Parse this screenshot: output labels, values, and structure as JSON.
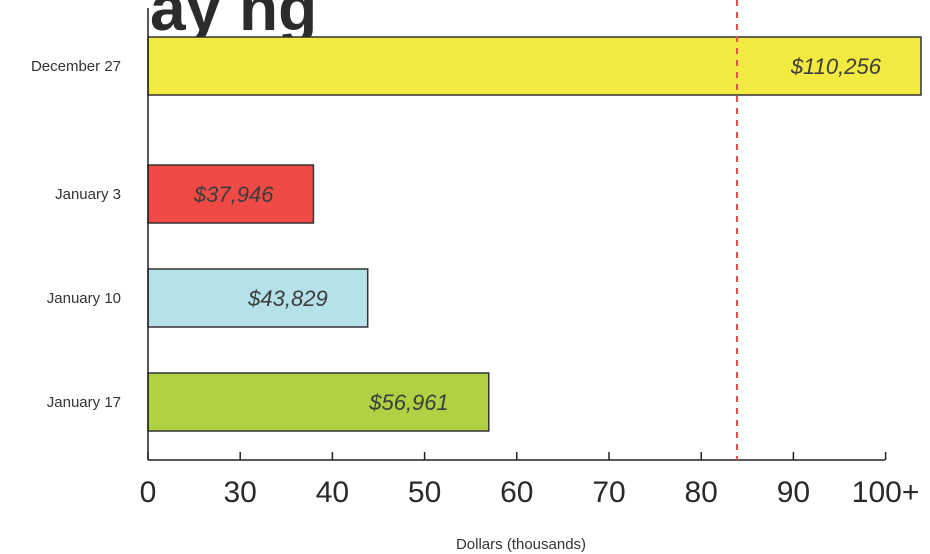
{
  "chart_data": {
    "type": "bar",
    "orientation": "horizontal",
    "categories": [
      "December 27",
      "January 3",
      "January 10",
      "January 17"
    ],
    "values": [
      110256,
      37946,
      43829,
      56961
    ],
    "value_labels": [
      "$110,256",
      "$37,946",
      "$43,829",
      "$56,961"
    ],
    "colors": [
      "#f2ea40",
      "#ef4a45",
      "#b5e2e8",
      "#afd143"
    ],
    "x_ticks": [
      "0",
      "30",
      "40",
      "50",
      "60",
      "70",
      "80",
      "90",
      "100+"
    ],
    "xlabel": "Dollars (thousands)",
    "reference_line": {
      "value_label": "84",
      "color": "#e0524e",
      "style": "dashed"
    },
    "title_fragment": "ay ng"
  }
}
